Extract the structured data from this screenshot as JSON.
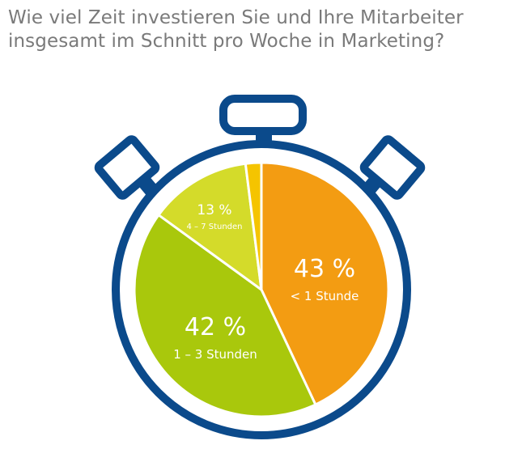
{
  "title_lines": [
    "Wie viel Zeit investieren Sie und Ihre Mitarbeiter",
    "insgesamt im Schnitt pro Woche in Marketing?"
  ],
  "chart_data": {
    "type": "pie",
    "title": "Wie viel Zeit investieren Sie und Ihre Mitarbeiter insgesamt im Schnitt pro Woche in Marketing?",
    "slices": [
      {
        "label": "< 1 Stunde",
        "value": 43,
        "value_label": "43 %",
        "color": "#f39c12"
      },
      {
        "label": "1 – 3 Stunden",
        "value": 42,
        "value_label": "42 %",
        "color": "#a9c80c"
      },
      {
        "label": "4 – 7 Stunden",
        "value": 13,
        "value_label": "13 %",
        "color": "#d4db2a"
      },
      {
        "label": "",
        "value": 2,
        "value_label": "",
        "color": "#f5c400"
      }
    ]
  },
  "colors": {
    "title": "#7a7a7a",
    "stopwatch_frame": "#0b4a8b",
    "label_text": "#ffffff"
  }
}
